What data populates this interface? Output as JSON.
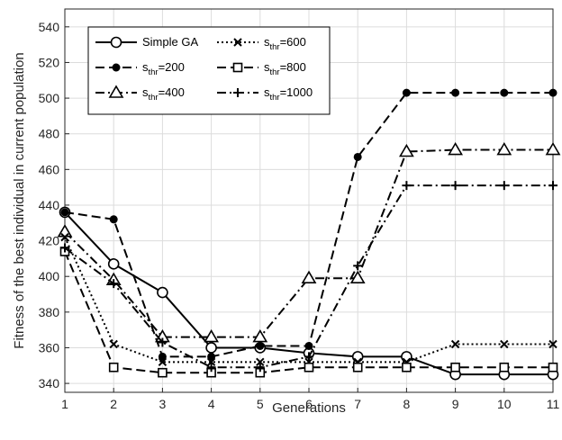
{
  "chart_data": {
    "type": "line",
    "xlabel": "Generations",
    "ylabel": "Fitness of the best individual in current population",
    "xlim": [
      1,
      11
    ],
    "ylim": [
      335,
      550
    ],
    "xticks": [
      1,
      2,
      3,
      4,
      5,
      6,
      7,
      8,
      9,
      10,
      11
    ],
    "yticks": [
      340,
      360,
      380,
      400,
      420,
      440,
      460,
      480,
      500,
      520,
      540
    ],
    "grid": true,
    "legend_position": "top-left",
    "x": [
      1,
      2,
      3,
      4,
      5,
      6,
      7,
      8,
      9,
      10,
      11
    ],
    "series": [
      {
        "name": "Simple GA",
        "name_main": "Simple GA",
        "name_sub": "",
        "name_suffix": "",
        "marker": "circle-open",
        "dash": "solid",
        "values": [
          436,
          407,
          391,
          360,
          360,
          357,
          355,
          355,
          345,
          345,
          345
        ]
      },
      {
        "name": "s_thr=200",
        "name_main": "s",
        "name_sub": "thr",
        "name_suffix": "=200",
        "marker": "circle-filled",
        "dash": "dash",
        "values": [
          436,
          432,
          355,
          355,
          361,
          361,
          467,
          503,
          503,
          503,
          503
        ]
      },
      {
        "name": "s_thr=400",
        "name_main": "s",
        "name_sub": "thr",
        "name_suffix": "=400",
        "marker": "triangle-open",
        "dash": "dashdot",
        "values": [
          425,
          398,
          366,
          366,
          366,
          399,
          399,
          470,
          471,
          471,
          471
        ]
      },
      {
        "name": "s_thr=600",
        "name_main": "s",
        "name_sub": "thr",
        "name_suffix": "=600",
        "marker": "x",
        "dash": "dot",
        "values": [
          422,
          362,
          352,
          352,
          352,
          352,
          352,
          352,
          362,
          362,
          362
        ]
      },
      {
        "name": "s_thr=800",
        "name_main": "s",
        "name_sub": "thr",
        "name_suffix": "=800",
        "marker": "square-open",
        "dash": "dash",
        "values": [
          414,
          349,
          346,
          346,
          346,
          349,
          349,
          349,
          349,
          349,
          349
        ]
      },
      {
        "name": "s_thr=1000",
        "name_main": "s",
        "name_sub": "thr",
        "name_suffix": "=1000",
        "marker": "plus",
        "dash": "dashdot",
        "values": [
          416,
          396,
          363,
          349,
          349,
          355,
          406,
          451,
          451,
          451,
          451
        ]
      }
    ],
    "colors": {
      "line": "#000000",
      "grid": "#dcdcdc",
      "axis": "#262626",
      "background": "#ffffff"
    }
  }
}
